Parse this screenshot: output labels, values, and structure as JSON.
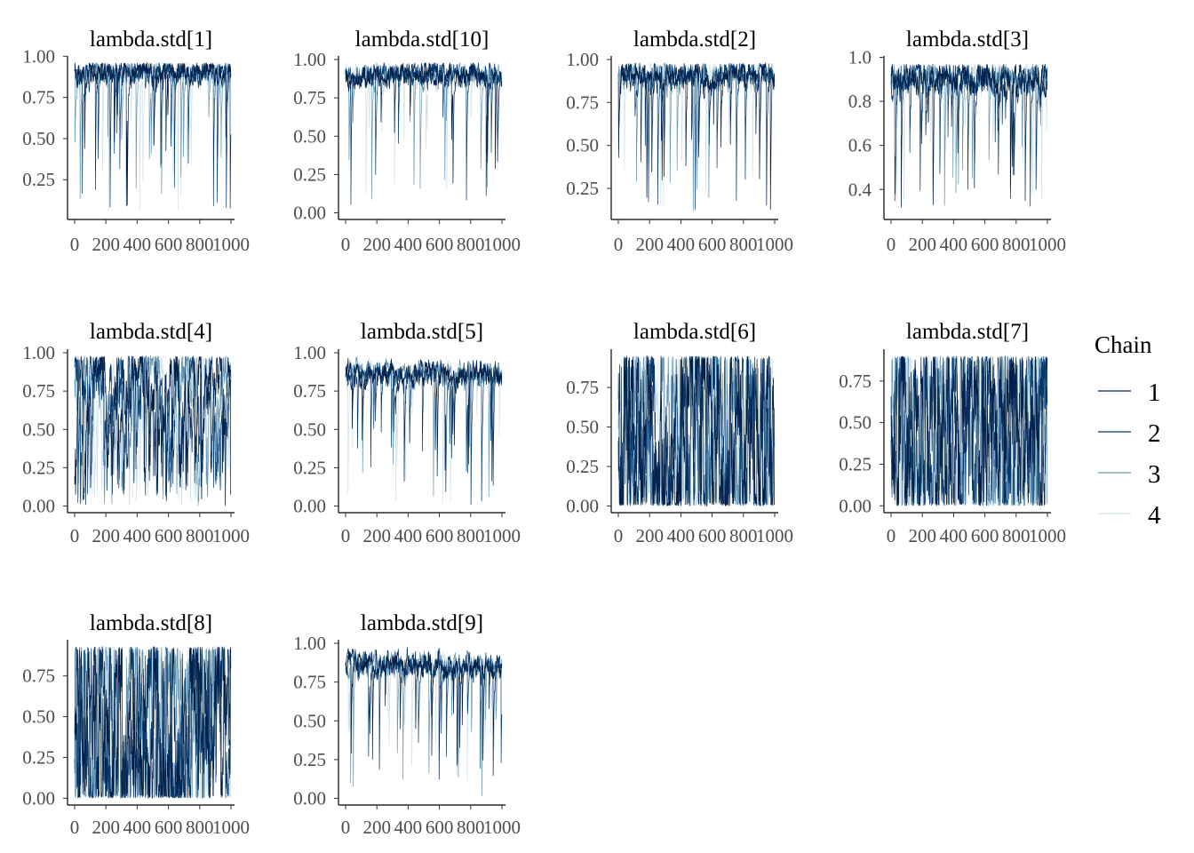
{
  "chart_data": {
    "type": "line",
    "x_axis": {
      "min": 0,
      "max": 1000,
      "tick_labels": [
        "0",
        "200",
        "400",
        "600",
        "800",
        "1000"
      ],
      "ticks": [
        0,
        200,
        400,
        600,
        800,
        1000
      ]
    },
    "grid": false,
    "legend": {
      "title": "Chain",
      "placement": "right",
      "entries": [
        "1",
        "2",
        "3",
        "4"
      ],
      "colors": [
        "#011f4b",
        "#03396c",
        "#6497b1",
        "#d1e1ec"
      ]
    },
    "panels": [
      {
        "title": "lambda.std[1]",
        "ylim": [
          0.03,
          0.98
        ],
        "yticks": [
          0.25,
          0.5,
          0.75,
          1.0
        ],
        "ytick_labels": [
          "0.25",
          "0.50",
          "0.75",
          "1.00"
        ],
        "mode": "high",
        "center": 0.91,
        "lo": 0.06
      },
      {
        "title": "lambda.std[10]",
        "ylim": [
          -0.02,
          1.0
        ],
        "yticks": [
          0,
          0.25,
          0.5,
          0.75,
          1.0
        ],
        "ytick_labels": [
          "0.00",
          "0.25",
          "0.50",
          "0.75",
          "1.00"
        ],
        "mode": "high",
        "center": 0.9,
        "lo": 0.03
      },
      {
        "title": "lambda.std[2]",
        "ylim": [
          0.09,
          1.0
        ],
        "yticks": [
          0.25,
          0.5,
          0.75,
          1.0
        ],
        "ytick_labels": [
          "0.25",
          "0.50",
          "0.75",
          "1.00"
        ],
        "mode": "high",
        "center": 0.91,
        "lo": 0.11
      },
      {
        "title": "lambda.std[3]",
        "ylim": [
          0.28,
          0.99
        ],
        "yticks": [
          0.4,
          0.6,
          0.8,
          1.0
        ],
        "ytick_labels": [
          "0.4",
          "0.6",
          "0.8",
          "1.0"
        ],
        "mode": "high",
        "center": 0.91,
        "lo": 0.31
      },
      {
        "title": "lambda.std[4]",
        "ylim": [
          -0.02,
          1.0
        ],
        "yticks": [
          0,
          0.25,
          0.5,
          0.75,
          1.0
        ],
        "ytick_labels": [
          "0.00",
          "0.25",
          "0.50",
          "0.75",
          "1.00"
        ],
        "mode": "mixed",
        "center": 0.86,
        "lo": 0.0
      },
      {
        "title": "lambda.std[5]",
        "ylim": [
          -0.02,
          1.0
        ],
        "yticks": [
          0,
          0.25,
          0.5,
          0.75,
          1.0
        ],
        "ytick_labels": [
          "0.00",
          "0.25",
          "0.50",
          "0.75",
          "1.00"
        ],
        "mode": "high",
        "center": 0.86,
        "lo": 0.0
      },
      {
        "title": "lambda.std[6]",
        "ylim": [
          -0.02,
          0.97
        ],
        "yticks": [
          0,
          0.25,
          0.5,
          0.75
        ],
        "ytick_labels": [
          "0.00",
          "0.25",
          "0.50",
          "0.75"
        ],
        "mode": "wide",
        "center": 0.5,
        "lo": 0.0
      },
      {
        "title": "lambda.std[7]",
        "ylim": [
          -0.02,
          0.92
        ],
        "yticks": [
          0,
          0.25,
          0.5,
          0.75
        ],
        "ytick_labels": [
          "0.00",
          "0.25",
          "0.50",
          "0.75"
        ],
        "mode": "wide",
        "center": 0.45,
        "lo": 0.0
      },
      {
        "title": "lambda.std[8]",
        "ylim": [
          -0.02,
          0.95
        ],
        "yticks": [
          0,
          0.25,
          0.5,
          0.75
        ],
        "ytick_labels": [
          "0.00",
          "0.25",
          "0.50",
          "0.75"
        ],
        "mode": "wide",
        "center": 0.45,
        "lo": 0.0
      },
      {
        "title": "lambda.std[9]",
        "ylim": [
          -0.02,
          1.0
        ],
        "yticks": [
          0,
          0.25,
          0.5,
          0.75,
          1.0
        ],
        "ytick_labels": [
          "0.00",
          "0.25",
          "0.50",
          "0.75",
          "1.00"
        ],
        "mode": "high",
        "center": 0.86,
        "lo": 0.01
      }
    ],
    "iterations_per_chain": 1000
  }
}
